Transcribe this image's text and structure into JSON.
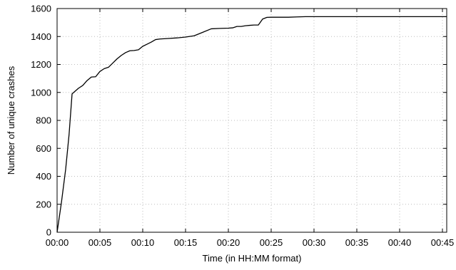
{
  "chart_data": {
    "type": "line",
    "xlabel": "Time (in HH:MM format)",
    "ylabel": "Number of unique crashes",
    "x_unit": "minutes",
    "xlim": [
      0,
      45.5
    ],
    "ylim": [
      0,
      1600
    ],
    "x_ticks": [
      0,
      5,
      10,
      15,
      20,
      25,
      30,
      35,
      40,
      45
    ],
    "x_tick_labels": [
      "00:00",
      "00:05",
      "00:10",
      "00:15",
      "00:20",
      "00:25",
      "00:30",
      "00:35",
      "00:40",
      "00:45"
    ],
    "y_ticks": [
      0,
      200,
      400,
      600,
      800,
      1000,
      1200,
      1400,
      1600
    ],
    "y_tick_labels": [
      "0",
      "200",
      "400",
      "600",
      "800",
      "1000",
      "1200",
      "1400",
      "1600"
    ],
    "grid": true,
    "legend": "none",
    "series": [
      {
        "color": "#000000",
        "x": [
          0,
          0.5,
          1,
          1.4,
          1.75,
          2.5,
          3,
          3.5,
          4,
          4.5,
          5,
          5.5,
          6,
          6.5,
          7,
          7.5,
          8,
          8.5,
          9,
          9.5,
          10,
          10.5,
          11,
          11.5,
          12,
          13,
          14,
          15,
          16,
          17,
          18,
          19,
          20,
          20.5,
          21,
          21.5,
          22,
          22.5,
          23,
          23.5,
          24,
          24.5,
          25,
          26,
          27,
          28,
          29,
          30,
          35,
          40,
          45,
          45.5
        ],
        "y": [
          0,
          210,
          450,
          700,
          990,
          1030,
          1050,
          1085,
          1110,
          1112,
          1150,
          1170,
          1180,
          1210,
          1240,
          1265,
          1285,
          1298,
          1300,
          1305,
          1330,
          1345,
          1360,
          1378,
          1382,
          1386,
          1390,
          1396,
          1405,
          1430,
          1455,
          1458,
          1460,
          1462,
          1472,
          1472,
          1477,
          1480,
          1482,
          1482,
          1525,
          1537,
          1538,
          1538,
          1538,
          1540,
          1542,
          1542,
          1542,
          1542,
          1542,
          1542
        ]
      }
    ]
  }
}
